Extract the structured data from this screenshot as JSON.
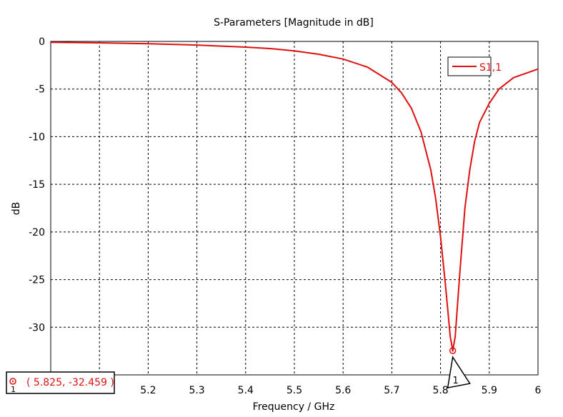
{
  "chart_data": {
    "type": "line",
    "title": "S-Parameters [Magnitude in dB]",
    "xlabel": "Frequency / GHz",
    "ylabel": "dB",
    "xlim": [
      5.0,
      6.0
    ],
    "ylim": [
      -35,
      0
    ],
    "grid": true,
    "legend": "top-right",
    "x_ticks": [
      {
        "value": 5.2,
        "label": "5.2"
      },
      {
        "value": 5.3,
        "label": "5.3"
      },
      {
        "value": 5.4,
        "label": "5.4"
      },
      {
        "value": 5.5,
        "label": "5.5"
      },
      {
        "value": 5.6,
        "label": "5.6"
      },
      {
        "value": 5.7,
        "label": "5.7"
      },
      {
        "value": 5.8,
        "label": "5.8"
      },
      {
        "value": 5.9,
        "label": "5.9"
      },
      {
        "value": 6.0,
        "label": "6"
      }
    ],
    "x_grid": [
      5.1,
      5.2,
      5.3,
      5.4,
      5.5,
      5.6,
      5.7,
      5.8,
      5.9
    ],
    "y_ticks": [
      {
        "value": 0,
        "label": "0"
      },
      {
        "value": -5,
        "label": "-5"
      },
      {
        "value": -10,
        "label": "-10"
      },
      {
        "value": -15,
        "label": "-15"
      },
      {
        "value": -20,
        "label": "-20"
      },
      {
        "value": -25,
        "label": "-25"
      },
      {
        "value": -30,
        "label": "-30"
      }
    ],
    "series": [
      {
        "name": "S1,1",
        "color": "#dd1111",
        "points": [
          [
            5.0,
            -0.1
          ],
          [
            5.1,
            -0.15
          ],
          [
            5.2,
            -0.25
          ],
          [
            5.3,
            -0.38
          ],
          [
            5.4,
            -0.6
          ],
          [
            5.45,
            -0.75
          ],
          [
            5.5,
            -1.0
          ],
          [
            5.55,
            -1.35
          ],
          [
            5.6,
            -1.85
          ],
          [
            5.65,
            -2.7
          ],
          [
            5.7,
            -4.3
          ],
          [
            5.72,
            -5.4
          ],
          [
            5.74,
            -7.0
          ],
          [
            5.76,
            -9.5
          ],
          [
            5.78,
            -13.5
          ],
          [
            5.79,
            -16.5
          ],
          [
            5.8,
            -20.5
          ],
          [
            5.81,
            -25.5
          ],
          [
            5.82,
            -31.0
          ],
          [
            5.825,
            -32.459
          ],
          [
            5.83,
            -31.0
          ],
          [
            5.84,
            -24.0
          ],
          [
            5.85,
            -17.5
          ],
          [
            5.86,
            -13.5
          ],
          [
            5.87,
            -10.5
          ],
          [
            5.88,
            -8.5
          ],
          [
            5.9,
            -6.5
          ],
          [
            5.92,
            -5.0
          ],
          [
            5.95,
            -3.8
          ],
          [
            6.0,
            -2.9
          ]
        ]
      }
    ],
    "marker": {
      "id": "1",
      "x": 5.825,
      "y": -32.459,
      "readout": "( 5.825, -32.459 )"
    }
  }
}
